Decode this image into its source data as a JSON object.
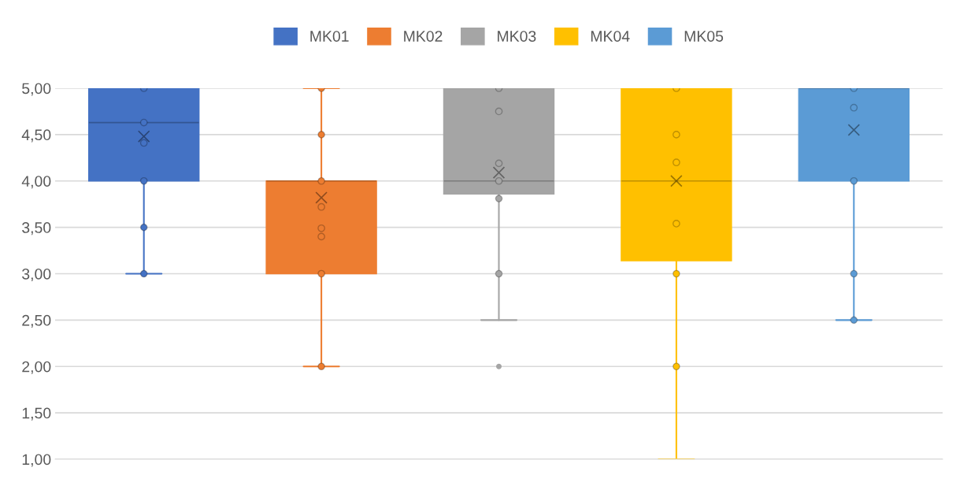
{
  "chart_data": {
    "type": "box",
    "categories": [
      null,
      null,
      null,
      null,
      null
    ],
    "ylim": [
      1,
      5
    ],
    "yticks": [
      {
        "value": 1,
        "label": "1,00"
      },
      {
        "value": 1.5,
        "label": "1,50"
      },
      {
        "value": 2,
        "label": "2,00"
      },
      {
        "value": 2.5,
        "label": "2,50"
      },
      {
        "value": 3,
        "label": "3,00"
      },
      {
        "value": 3.5,
        "label": "3,50"
      },
      {
        "value": 4,
        "label": "4,00"
      },
      {
        "value": 4.5,
        "label": "4,50"
      },
      {
        "value": 5,
        "label": "5,00"
      }
    ],
    "grid": "y",
    "legend": "top",
    "series": [
      {
        "name": "MK01",
        "color": "#4472c4",
        "boxes": [
          {
            "low": 3,
            "q1": 4,
            "median": 4.63,
            "q3": 5,
            "high": 5,
            "mean": 4.48
          },
          null,
          null,
          null,
          null
        ]
      },
      {
        "name": "MK02",
        "color": "#ed7d31",
        "boxes": [
          null,
          {
            "low": 2,
            "q1": 3,
            "median": 4,
            "q3": 4,
            "high": 5,
            "mean": 3.82
          },
          null,
          null,
          null
        ]
      },
      {
        "name": "MK03",
        "color": "#a5a5a5",
        "boxes": [
          null,
          null,
          {
            "low": 2.5,
            "q1": 3.86,
            "median": 4,
            "q3": 5,
            "high": 5,
            "mean": 4.09,
            "outliers": [
              2
            ]
          },
          null,
          null
        ]
      },
      {
        "name": "MK04",
        "color": "#ffc000",
        "boxes": [
          null,
          null,
          null,
          {
            "low": 1,
            "q1": 3.14,
            "median": 4,
            "q3": 5,
            "high": 5,
            "mean": 4.0
          },
          null
        ]
      },
      {
        "name": "MK05",
        "color": "#5b9bd5",
        "boxes": [
          null,
          null,
          null,
          null,
          {
            "low": 2.5,
            "q1": 4,
            "median": 5,
            "q3": 5,
            "high": 5,
            "mean": 4.55
          }
        ]
      },
      {
        "type": "scatter",
        "colors": [
          "#4472c4",
          "#ed7d31",
          "#a5a5a5",
          "#ffc000",
          "#5b9bd5"
        ],
        "values": [
          5,
          5,
          5,
          5,
          5
        ]
      },
      {
        "type": "scatter",
        "colors": [
          "#4472c4",
          "#ed7d31",
          "#a5a5a5",
          "#ffc000",
          "#5b9bd5"
        ],
        "values": [
          4.63,
          4.5,
          4.75,
          4.5,
          4.79
        ]
      },
      {
        "type": "scatter",
        "colors": [
          "#4472c4",
          "#ed7d31",
          "#a5a5a5",
          "#ffc000",
          "#5b9bd5"
        ],
        "values": [
          4.41,
          4,
          4.19,
          4.2,
          4
        ]
      },
      {
        "type": "scatter",
        "colors": [
          "#4472c4",
          "#ed7d31",
          "#a5a5a5",
          "#ffc000",
          "#5b9bd5"
        ],
        "values": [
          4,
          3.72,
          4,
          3.54,
          3
        ]
      },
      {
        "type": "scatter",
        "colors": [
          "#4472c4",
          "#ed7d31",
          "#a5a5a5",
          "#ffc000",
          "#5b9bd5"
        ],
        "values": [
          3.5,
          3.49,
          3.81,
          3,
          2.5
        ]
      },
      {
        "type": "scatter",
        "colors": [
          "#4472c4",
          "#ed7d31",
          "#a5a5a5",
          "#ffc000",
          "#5b9bd5"
        ],
        "values": [
          3,
          3.4,
          3,
          2,
          null
        ]
      },
      {
        "type": "scatter",
        "colors": [
          "#4472c4",
          "#ed7d31",
          "#a5a5a5",
          "#ffc000",
          "#5b9bd5"
        ],
        "values": [
          null,
          3,
          null,
          null,
          null
        ]
      },
      {
        "type": "scatter",
        "colors": [
          "#4472c4",
          "#ed7d31",
          "#a5a5a5",
          "#ffc000",
          "#5b9bd5"
        ],
        "values": [
          null,
          2,
          null,
          null,
          null
        ]
      }
    ]
  }
}
